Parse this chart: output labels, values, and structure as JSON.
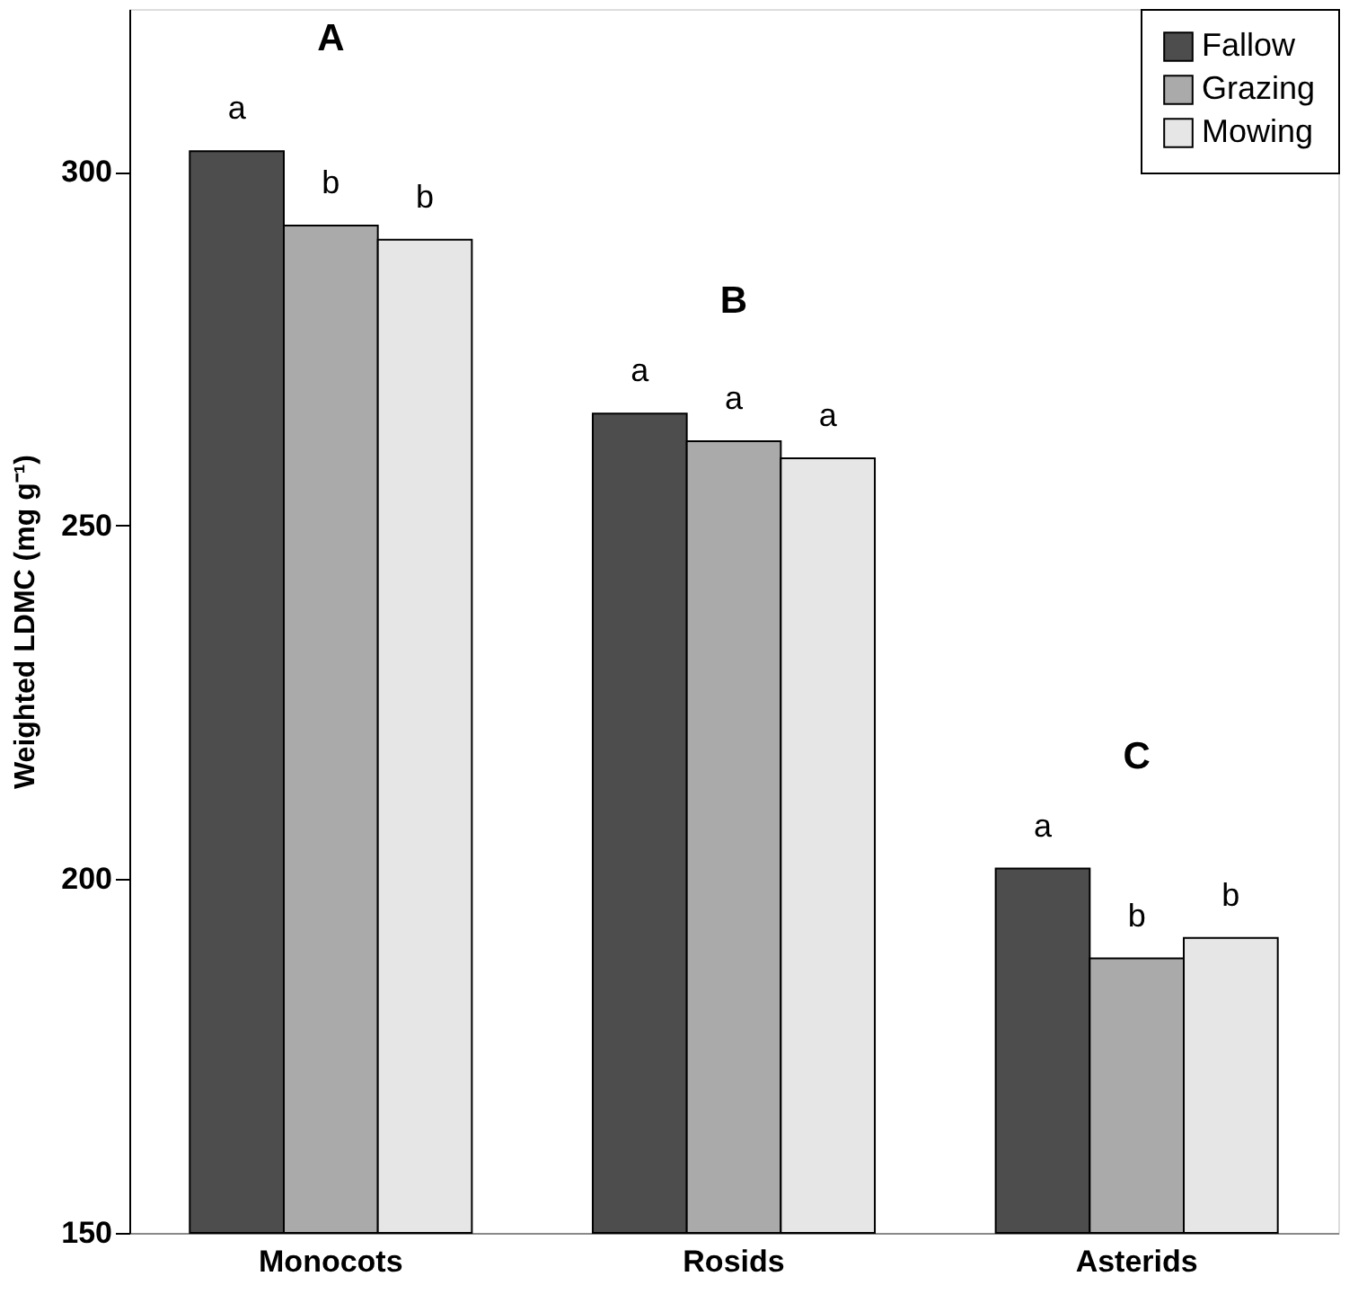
{
  "chart_data": {
    "type": "bar",
    "ylabel": "Weighted LDMC (mg g⁻¹)",
    "categories": [
      "Monocots",
      "Rosids",
      "Asterids"
    ],
    "series": [
      {
        "name": "Fallow",
        "color": "#4d4d4d",
        "values": [
          302.9,
          265.8,
          201.5
        ],
        "value_labels": [
          "a",
          "a",
          "a"
        ]
      },
      {
        "name": "Grazing",
        "color": "#aaaaaa",
        "values": [
          292.4,
          261.9,
          188.8
        ],
        "value_labels": [
          "b",
          "a",
          "b"
        ]
      },
      {
        "name": "Mowing",
        "color": "#e6e6e6",
        "values": [
          290.4,
          259.5,
          191.7
        ],
        "value_labels": [
          "b",
          "a",
          "b"
        ]
      }
    ],
    "annotations": [
      "A",
      "B",
      "C"
    ],
    "ylim": [
      150,
      323
    ],
    "yticks": [
      150,
      200,
      250,
      300
    ],
    "grid": false,
    "legend": "top right"
  }
}
